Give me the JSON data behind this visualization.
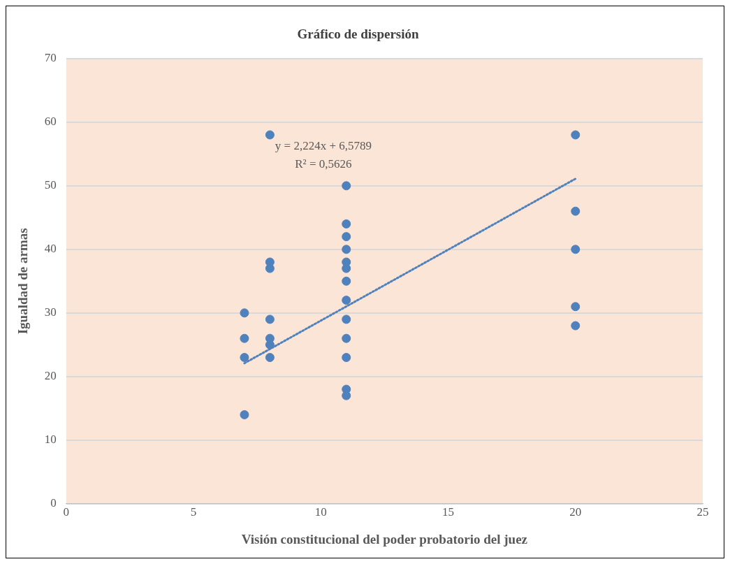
{
  "chart_data": {
    "type": "scatter",
    "title": "Gráfico de dispersión",
    "xlabel": "Visión constitucional del poder probatorio del juez",
    "ylabel": "Igualdad de armas",
    "series": [
      {
        "color": "#4f81bd",
        "marker": "circle",
        "x": [
          7,
          7,
          7,
          7,
          8,
          8,
          8,
          8,
          8,
          8,
          8,
          11,
          11,
          11,
          11,
          11,
          11,
          11,
          11,
          11,
          11,
          11,
          11,
          11,
          20,
          20,
          20,
          20,
          20
        ],
        "values": [
          30,
          26,
          23,
          14,
          58,
          38,
          37,
          29,
          26,
          25,
          23,
          50,
          44,
          42,
          40,
          38,
          37,
          35,
          32,
          29,
          26,
          23,
          18,
          17,
          58,
          46,
          40,
          31,
          28
        ]
      },
      {
        "type": "line",
        "color": "#4f81bd",
        "marker": "none",
        "line_style": "dotted",
        "x": [
          7,
          20
        ],
        "values": [
          22.1,
          51.1
        ]
      }
    ],
    "xlim": [
      0,
      25
    ],
    "xticks": [
      0,
      5,
      10,
      15,
      20,
      25
    ],
    "ylim": [
      0,
      70
    ],
    "yticks": [
      0,
      10,
      20,
      30,
      40,
      50,
      60,
      70
    ],
    "grid": "y",
    "legend": false,
    "annotations": [
      "y = 2,224x + 6,5789",
      "R² = 0,5626"
    ]
  }
}
